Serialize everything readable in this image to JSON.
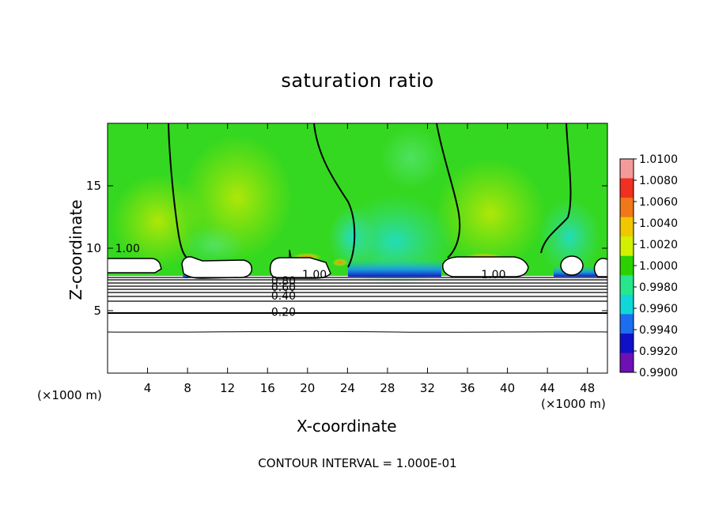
{
  "chart_data": {
    "type": "heatmap",
    "title": "saturation ratio",
    "xlabel": "X-coordinate",
    "ylabel": "Z-coordinate",
    "x_unit": "(×1000 m)",
    "xlim": [
      0,
      50
    ],
    "ylim": [
      0,
      20
    ],
    "x_ticks": [
      4,
      8,
      12,
      16,
      20,
      24,
      28,
      32,
      36,
      40,
      44,
      48
    ],
    "y_ticks": [
      5,
      10,
      15
    ],
    "colorbar": {
      "ticks": [
        "1.0100",
        "1.0080",
        "1.0060",
        "1.0040",
        "1.0020",
        "1.0000",
        "0.9980",
        "0.9960",
        "0.9940",
        "0.9920",
        "0.9900"
      ],
      "colors": [
        "#f59a9a",
        "#f03020",
        "#f07818",
        "#f0c800",
        "#d2f000",
        "#2ad200",
        "#28e68c",
        "#10d8d8",
        "#1c6ef0",
        "#1010c8",
        "#6e10b4"
      ]
    },
    "contour_labels": [
      {
        "text": "1.00",
        "x": 2.0,
        "z": 10.0
      },
      {
        "text": "1.00",
        "x": 20.7,
        "z": 7.9
      },
      {
        "text": "1.00",
        "x": 38.6,
        "z": 7.9
      },
      {
        "text": "0.80",
        "x": 17.6,
        "z": 7.4
      },
      {
        "text": "0.60",
        "x": 17.6,
        "z": 6.9
      },
      {
        "text": "0.40",
        "x": 17.6,
        "z": 6.2
      },
      {
        "text": "0.20",
        "x": 17.6,
        "z": 4.9
      }
    ],
    "contour_interval_text": "CONTOUR INTERVAL = 1.000E-01"
  }
}
